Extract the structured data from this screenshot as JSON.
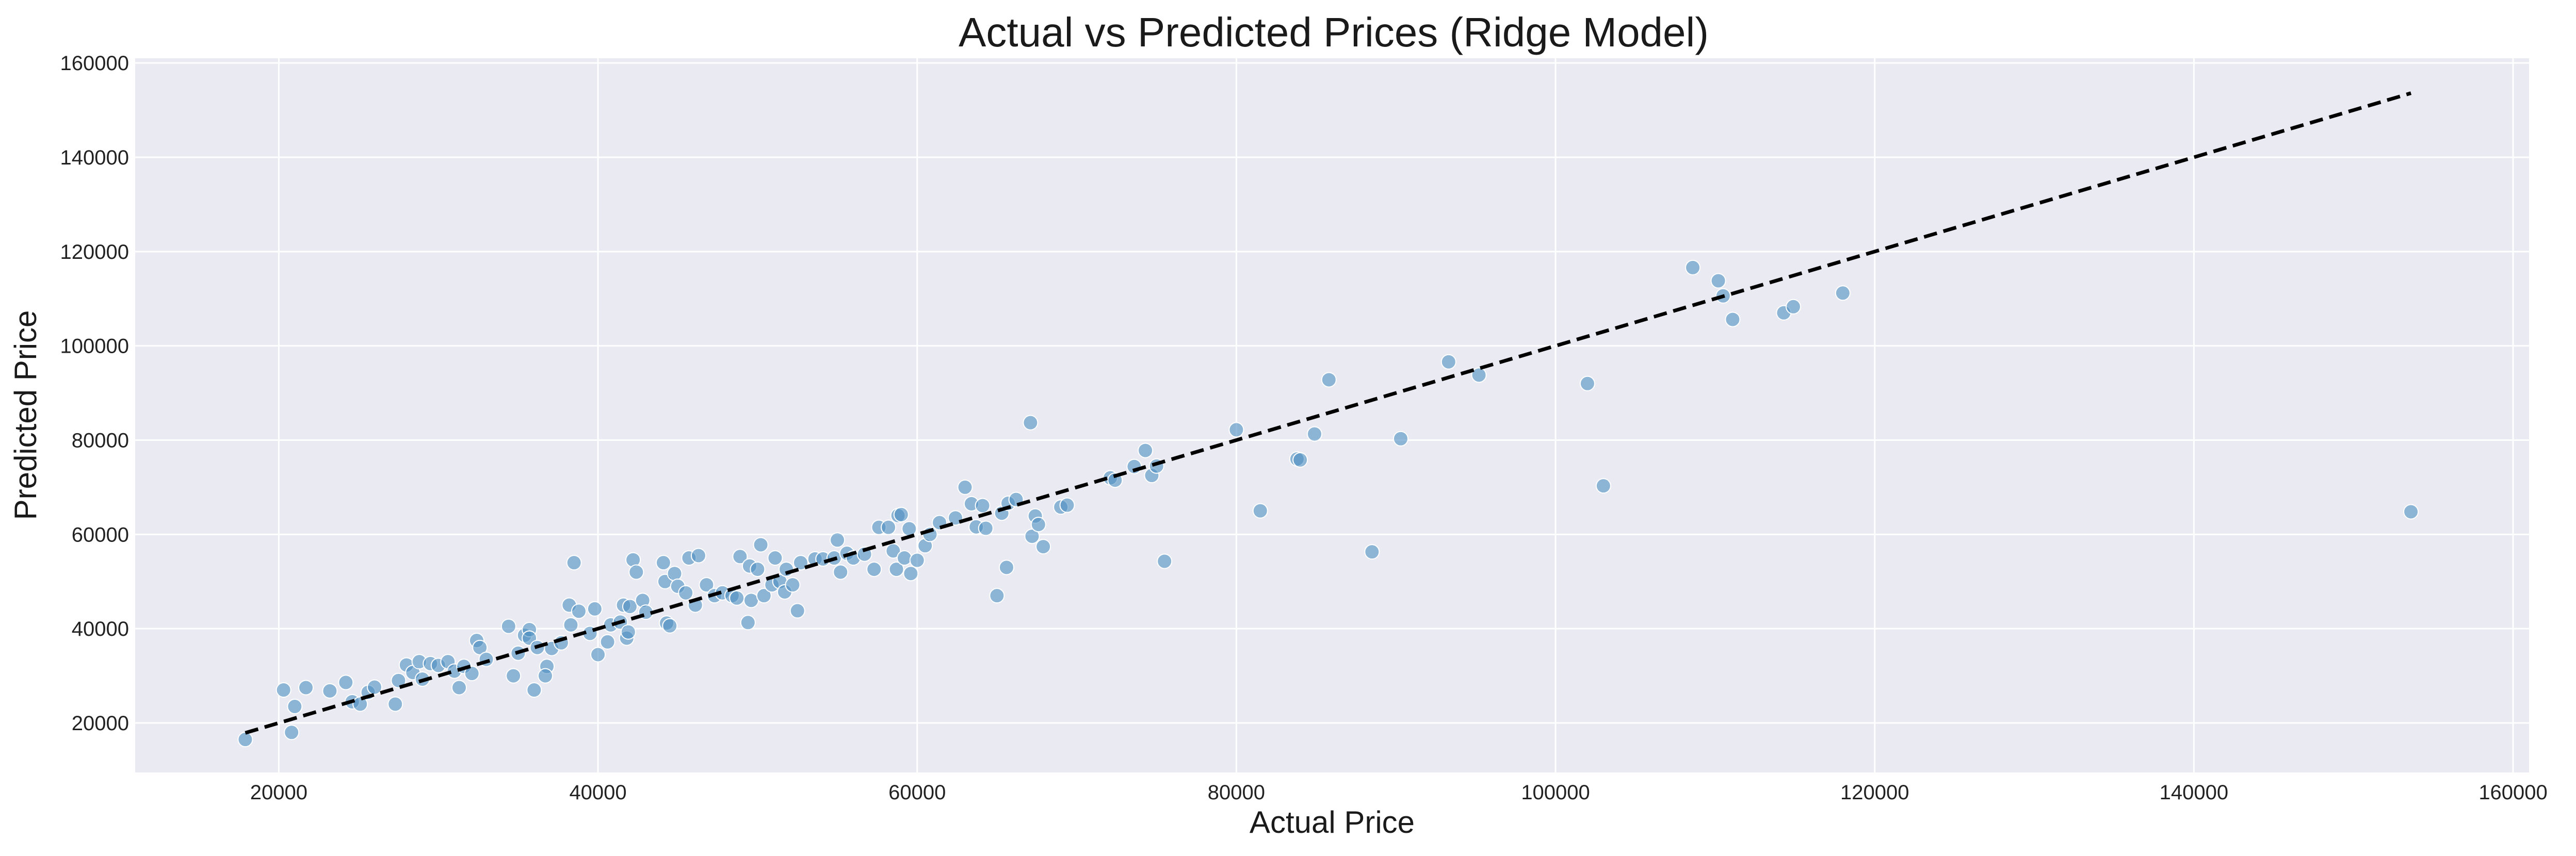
{
  "chart_data": {
    "type": "scatter",
    "title": "Actual vs Predicted Prices (Ridge Model)",
    "xlabel": "Actual Price",
    "ylabel": "Predicted Price",
    "xlim": [
      11000,
      161000
    ],
    "ylim": [
      9500,
      161000
    ],
    "xticks": [
      20000,
      40000,
      60000,
      80000,
      100000,
      120000,
      140000,
      160000
    ],
    "yticks": [
      20000,
      40000,
      60000,
      80000,
      100000,
      120000,
      140000,
      160000
    ],
    "grid": true,
    "reference_line": {
      "x": [
        17900,
        153600
      ],
      "y": [
        17900,
        153600
      ]
    },
    "points": [
      [
        17900,
        16500
      ],
      [
        20300,
        27000
      ],
      [
        20800,
        18000
      ],
      [
        21000,
        23500
      ],
      [
        21700,
        27500
      ],
      [
        23200,
        26800
      ],
      [
        24200,
        28600
      ],
      [
        24600,
        24500
      ],
      [
        25100,
        24000
      ],
      [
        25600,
        26500
      ],
      [
        26000,
        27600
      ],
      [
        27300,
        24000
      ],
      [
        27500,
        29000
      ],
      [
        28000,
        32300
      ],
      [
        28400,
        30700
      ],
      [
        28800,
        33000
      ],
      [
        29000,
        29300
      ],
      [
        29500,
        32600
      ],
      [
        30000,
        32200
      ],
      [
        30600,
        33000
      ],
      [
        31000,
        31000
      ],
      [
        31300,
        27500
      ],
      [
        31600,
        32000
      ],
      [
        32100,
        30500
      ],
      [
        32400,
        37500
      ],
      [
        32600,
        36000
      ],
      [
        33000,
        33500
      ],
      [
        34400,
        40500
      ],
      [
        34700,
        30000
      ],
      [
        35000,
        34800
      ],
      [
        35400,
        38600
      ],
      [
        35700,
        39800
      ],
      [
        36000,
        27000
      ],
      [
        35700,
        38000
      ],
      [
        36200,
        36000
      ],
      [
        36800,
        32000
      ],
      [
        36700,
        30000
      ],
      [
        37100,
        35800
      ],
      [
        37700,
        37000
      ],
      [
        38200,
        45000
      ],
      [
        38500,
        54000
      ],
      [
        38300,
        40800
      ],
      [
        38800,
        43700
      ],
      [
        39500,
        39000
      ],
      [
        39800,
        44200
      ],
      [
        40000,
        34500
      ],
      [
        40600,
        37200
      ],
      [
        40800,
        40800
      ],
      [
        41400,
        41400
      ],
      [
        41600,
        45000
      ],
      [
        41800,
        38000
      ],
      [
        41900,
        39300
      ],
      [
        42000,
        44700
      ],
      [
        42200,
        54600
      ],
      [
        42400,
        52000
      ],
      [
        42800,
        46000
      ],
      [
        43000,
        43500
      ],
      [
        44100,
        54000
      ],
      [
        44200,
        50000
      ],
      [
        44300,
        41200
      ],
      [
        44500,
        40600
      ],
      [
        44800,
        51700
      ],
      [
        45000,
        49000
      ],
      [
        45500,
        47600
      ],
      [
        45700,
        55000
      ],
      [
        46100,
        45000
      ],
      [
        46300,
        55500
      ],
      [
        46800,
        49300
      ],
      [
        47300,
        47000
      ],
      [
        47800,
        47600
      ],
      [
        48400,
        47000
      ],
      [
        48700,
        46500
      ],
      [
        48900,
        55300
      ],
      [
        49400,
        41300
      ],
      [
        49500,
        53300
      ],
      [
        49600,
        46000
      ],
      [
        50000,
        52600
      ],
      [
        50200,
        57800
      ],
      [
        50400,
        47000
      ],
      [
        50900,
        49300
      ],
      [
        51100,
        55000
      ],
      [
        51400,
        50000
      ],
      [
        51700,
        47800
      ],
      [
        51800,
        52600
      ],
      [
        52200,
        49300
      ],
      [
        52500,
        43800
      ],
      [
        52700,
        54000
      ],
      [
        53600,
        54800
      ],
      [
        54100,
        54800
      ],
      [
        54800,
        55000
      ],
      [
        55000,
        58800
      ],
      [
        55200,
        52000
      ],
      [
        55600,
        56000
      ],
      [
        56000,
        55000
      ],
      [
        56700,
        55800
      ],
      [
        57300,
        52600
      ],
      [
        57600,
        61500
      ],
      [
        58200,
        61500
      ],
      [
        58500,
        56500
      ],
      [
        58700,
        52600
      ],
      [
        58800,
        64000
      ],
      [
        59000,
        64200
      ],
      [
        59200,
        55000
      ],
      [
        59500,
        61200
      ],
      [
        59600,
        51700
      ],
      [
        60000,
        54500
      ],
      [
        60500,
        57600
      ],
      [
        60800,
        60000
      ],
      [
        61400,
        62500
      ],
      [
        62400,
        63500
      ],
      [
        63000,
        70000
      ],
      [
        63400,
        66500
      ],
      [
        63700,
        61600
      ],
      [
        64100,
        66100
      ],
      [
        64300,
        61300
      ],
      [
        65000,
        47000
      ],
      [
        65300,
        64500
      ],
      [
        65600,
        53000
      ],
      [
        65700,
        66600
      ],
      [
        66200,
        67400
      ],
      [
        67100,
        83700
      ],
      [
        67200,
        59600
      ],
      [
        67400,
        63900
      ],
      [
        67600,
        62100
      ],
      [
        67900,
        57400
      ],
      [
        69000,
        65800
      ],
      [
        69400,
        66200
      ],
      [
        72100,
        72000
      ],
      [
        72400,
        71500
      ],
      [
        73600,
        74400
      ],
      [
        74300,
        77800
      ],
      [
        74700,
        72500
      ],
      [
        75000,
        74500
      ],
      [
        75500,
        54300
      ],
      [
        80000,
        82200
      ],
      [
        81500,
        65000
      ],
      [
        83800,
        76000
      ],
      [
        84000,
        75800
      ],
      [
        84900,
        81300
      ],
      [
        85800,
        92800
      ],
      [
        88500,
        56300
      ],
      [
        90300,
        80300
      ],
      [
        93300,
        96600
      ],
      [
        95200,
        93800
      ],
      [
        102000,
        92000
      ],
      [
        103000,
        70300
      ],
      [
        108600,
        116600
      ],
      [
        110200,
        113800
      ],
      [
        110500,
        110600
      ],
      [
        111100,
        105600
      ],
      [
        114300,
        107000
      ],
      [
        114900,
        108300
      ],
      [
        118000,
        111200
      ],
      [
        153600,
        64800
      ]
    ]
  }
}
